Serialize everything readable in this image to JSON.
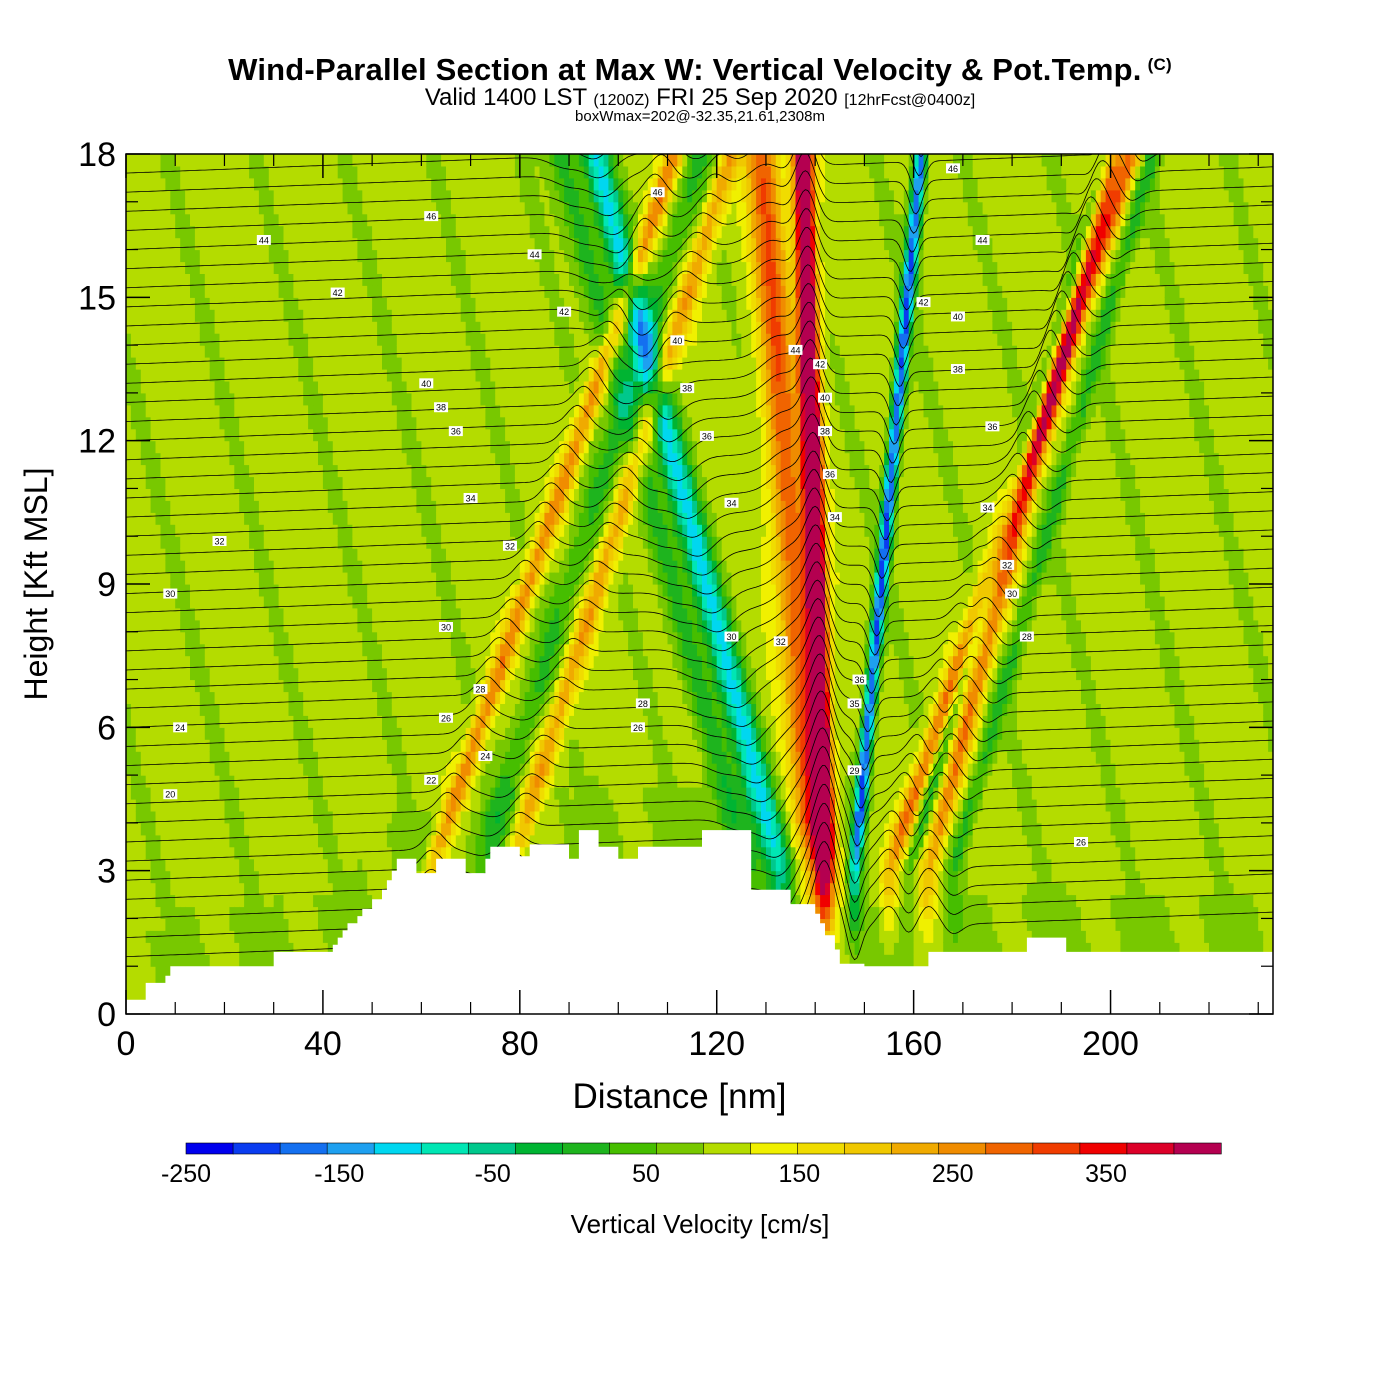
{
  "header": {
    "title": "Wind-Parallel Section at Max W: Vertical Velocity & Pot.Temp.",
    "copyright_mark": "(C)",
    "subtitle_valid": "Valid 1400 LST",
    "subtitle_zulu": "(1200Z)",
    "subtitle_date": "FRI 25 Sep 2020",
    "subtitle_fcst": "[12hrFcst@0400z]",
    "box_info": "boxWmax=202@-32.35,21.61,2308m"
  },
  "chart_data": {
    "type": "heatmap",
    "xlabel": "Distance [nm]",
    "ylabel": "Height [Kft MSL]",
    "xlim": [
      0,
      233
    ],
    "ylim": [
      0,
      18
    ],
    "x_ticks": [
      0,
      40,
      80,
      120,
      160,
      200
    ],
    "y_ticks": [
      0,
      3,
      6,
      9,
      12,
      15,
      18
    ],
    "x_tick_labels": [
      "0",
      "40",
      "80",
      "120",
      "160",
      "200"
    ],
    "y_tick_labels": [
      "0",
      "3",
      "6",
      "9",
      "12",
      "15",
      "18"
    ],
    "grid": false,
    "colorbar": {
      "label": "Vertical Velocity [cm/s]",
      "placement": "bottom",
      "min": -250,
      "max": 425,
      "step": 25,
      "tick_values": [
        -250,
        -150,
        -50,
        50,
        150,
        250,
        350
      ],
      "tick_labels": [
        "-250",
        "-150",
        "-50",
        "50",
        "150",
        "250",
        "350"
      ],
      "colors": [
        "#0000ee",
        "#0a3cf0",
        "#1470f0",
        "#1ea0f0",
        "#00d7f0",
        "#00e6b4",
        "#00c88c",
        "#00b432",
        "#1eb41e",
        "#46be00",
        "#78c800",
        "#b4dc00",
        "#f0f000",
        "#f0dc00",
        "#f0c800",
        "#f0aa00",
        "#f08c00",
        "#f06400",
        "#f03c00",
        "#f00000",
        "#dc0028",
        "#b40050"
      ]
    },
    "terrain_profile": {
      "x": [
        0,
        4,
        4,
        8,
        8,
        9,
        9,
        30,
        30,
        42,
        42,
        43,
        43,
        44,
        44,
        45,
        45,
        47,
        47,
        48,
        48,
        50,
        50,
        52,
        52,
        53,
        53,
        54,
        54,
        55,
        55,
        59,
        59,
        63,
        63,
        69,
        69,
        73,
        73,
        74,
        74,
        80,
        80,
        82,
        82,
        90,
        90,
        92,
        92,
        96,
        96,
        100,
        100,
        104,
        104,
        117,
        117,
        127,
        127,
        135,
        135,
        140,
        140,
        141,
        141,
        142,
        142,
        144,
        144,
        145,
        145,
        150,
        150,
        163,
        163,
        183,
        183,
        191,
        191,
        215,
        215,
        233
      ],
      "y": [
        0.3,
        0.3,
        0.65,
        0.65,
        0.8,
        0.8,
        1.0,
        1.0,
        1.3,
        1.3,
        1.45,
        1.45,
        1.6,
        1.6,
        1.75,
        1.75,
        1.9,
        1.9,
        2.05,
        2.05,
        2.2,
        2.2,
        2.4,
        2.4,
        2.6,
        2.6,
        2.8,
        2.8,
        3.0,
        3.0,
        3.25,
        3.25,
        2.95,
        2.95,
        3.25,
        3.25,
        2.95,
        2.95,
        3.25,
        3.25,
        3.5,
        3.5,
        3.3,
        3.3,
        3.55,
        3.55,
        3.25,
        3.25,
        3.85,
        3.85,
        3.5,
        3.5,
        3.25,
        3.25,
        3.5,
        3.5,
        3.85,
        3.85,
        2.6,
        2.6,
        2.3,
        2.3,
        2.1,
        2.1,
        1.9,
        1.9,
        1.65,
        1.65,
        1.35,
        1.35,
        1.05,
        1.05,
        1.0,
        1.0,
        1.3,
        1.3,
        1.6,
        1.6,
        1.3,
        1.3,
        1.3,
        1.3
      ]
    },
    "w_features": [
      {
        "x0": 62,
        "slope": 0.55,
        "w": 2.0,
        "v": 130
      },
      {
        "x0": 78,
        "slope": 0.5,
        "w": 2.2,
        "v": 110
      },
      {
        "x0": 72,
        "slope": 0.5,
        "w": 3.0,
        "v": -60
      },
      {
        "x0": 142,
        "slope": -0.05,
        "w": 2.0,
        "v": 360
      },
      {
        "x0": 140,
        "slope": -0.12,
        "w": 3.5,
        "v": 160
      },
      {
        "x0": 148,
        "slope": 0.15,
        "w": 1.3,
        "v": -240
      },
      {
        "x0": 133,
        "slope": -0.42,
        "w": 3.0,
        "v": -160
      },
      {
        "x0": 126,
        "slope": -0.42,
        "w": 3.0,
        "v": -80
      },
      {
        "x0": 155,
        "slope": 0.55,
        "w": 2.0,
        "v": 150
      },
      {
        "x0": 163,
        "slope": 0.42,
        "w": 2.0,
        "v": 140
      },
      {
        "x0": 159,
        "slope": 0.45,
        "w": 1.5,
        "v": -80
      },
      {
        "x0": 168,
        "slope": 0.45,
        "w": 1.8,
        "v": -70
      }
    ],
    "theta_labels": [
      {
        "x": 28,
        "y": 16.2,
        "label": "44"
      },
      {
        "x": 43,
        "y": 15.1,
        "label": "42"
      },
      {
        "x": 62,
        "y": 16.7,
        "label": "46"
      },
      {
        "x": 83,
        "y": 15.9,
        "label": "44"
      },
      {
        "x": 89,
        "y": 14.7,
        "label": "42"
      },
      {
        "x": 108,
        "y": 17.2,
        "label": "46"
      },
      {
        "x": 112,
        "y": 14.1,
        "label": "40"
      },
      {
        "x": 61,
        "y": 13.2,
        "label": "40"
      },
      {
        "x": 64,
        "y": 12.7,
        "label": "38"
      },
      {
        "x": 67,
        "y": 12.2,
        "label": "36"
      },
      {
        "x": 114,
        "y": 13.1,
        "label": "38"
      },
      {
        "x": 118,
        "y": 12.1,
        "label": "36"
      },
      {
        "x": 70,
        "y": 10.8,
        "label": "34"
      },
      {
        "x": 78,
        "y": 9.8,
        "label": "32"
      },
      {
        "x": 123,
        "y": 10.7,
        "label": "34"
      },
      {
        "x": 19,
        "y": 9.9,
        "label": "32"
      },
      {
        "x": 9,
        "y": 8.8,
        "label": "30"
      },
      {
        "x": 65,
        "y": 8.1,
        "label": "30"
      },
      {
        "x": 123,
        "y": 7.9,
        "label": "30"
      },
      {
        "x": 133,
        "y": 7.8,
        "label": "32"
      },
      {
        "x": 72,
        "y": 6.8,
        "label": "28"
      },
      {
        "x": 105,
        "y": 6.5,
        "label": "28"
      },
      {
        "x": 65,
        "y": 6.2,
        "label": "26"
      },
      {
        "x": 104,
        "y": 6.0,
        "label": "26"
      },
      {
        "x": 11,
        "y": 6.0,
        "label": "24"
      },
      {
        "x": 73,
        "y": 5.4,
        "label": "24"
      },
      {
        "x": 62,
        "y": 4.9,
        "label": "22"
      },
      {
        "x": 9,
        "y": 4.6,
        "label": "20"
      },
      {
        "x": 136,
        "y": 13.9,
        "label": "44"
      },
      {
        "x": 141,
        "y": 13.6,
        "label": "42"
      },
      {
        "x": 142,
        "y": 12.9,
        "label": "40"
      },
      {
        "x": 142,
        "y": 12.2,
        "label": "38"
      },
      {
        "x": 143,
        "y": 11.3,
        "label": "36"
      },
      {
        "x": 144,
        "y": 10.4,
        "label": "34"
      },
      {
        "x": 149,
        "y": 7.0,
        "label": "36"
      },
      {
        "x": 148,
        "y": 6.5,
        "label": "35"
      },
      {
        "x": 148,
        "y": 5.1,
        "label": "29"
      },
      {
        "x": 168,
        "y": 17.7,
        "label": "46"
      },
      {
        "x": 174,
        "y": 16.2,
        "label": "44"
      },
      {
        "x": 162,
        "y": 14.9,
        "label": "42"
      },
      {
        "x": 169,
        "y": 14.6,
        "label": "40"
      },
      {
        "x": 169,
        "y": 13.5,
        "label": "38"
      },
      {
        "x": 176,
        "y": 12.3,
        "label": "36"
      },
      {
        "x": 175,
        "y": 10.6,
        "label": "34"
      },
      {
        "x": 179,
        "y": 9.4,
        "label": "32"
      },
      {
        "x": 180,
        "y": 8.8,
        "label": "30"
      },
      {
        "x": 183,
        "y": 7.9,
        "label": "28"
      },
      {
        "x": 194,
        "y": 3.6,
        "label": "26"
      }
    ]
  }
}
